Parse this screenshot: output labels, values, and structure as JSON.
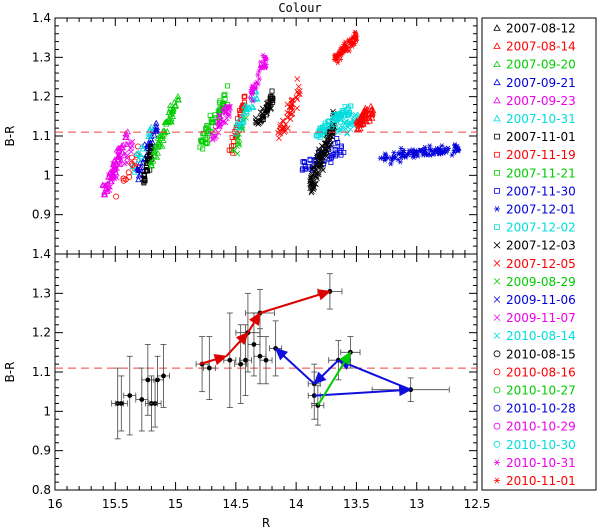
{
  "chart_data": {
    "type": "scatter",
    "title": "Colour",
    "xlabel": "R",
    "ylabel": "B-R",
    "xlim": [
      16,
      12.5
    ],
    "ylim": [
      0.8,
      1.4
    ],
    "x_ticks": [
      "16",
      "15.5",
      "15",
      "14.5",
      "14",
      "13.5",
      "13",
      "12.5"
    ],
    "top_y_ticks": [
      "0.9",
      "1",
      "1.1",
      "1.2",
      "1.3",
      "1.4"
    ],
    "bottom_y_ticks": [
      "0.8",
      "0.9",
      "1",
      "1.1",
      "1.2",
      "1.3",
      "1.4"
    ],
    "reference_line": 1.11,
    "legend": [
      {
        "label": "2007-08-12",
        "color": "#000000",
        "marker": "triangle"
      },
      {
        "label": "2007-08-14",
        "color": "#ff0000",
        "marker": "triangle"
      },
      {
        "label": "2007-09-20",
        "color": "#00cc00",
        "marker": "triangle"
      },
      {
        "label": "2007-09-21",
        "color": "#0000dd",
        "marker": "triangle"
      },
      {
        "label": "2007-09-23",
        "color": "#ee00ee",
        "marker": "triangle"
      },
      {
        "label": "2007-10-31",
        "color": "#00dddd",
        "marker": "triangle"
      },
      {
        "label": "2007-11-01",
        "color": "#000000",
        "marker": "square"
      },
      {
        "label": "2007-11-19",
        "color": "#ff0000",
        "marker": "square"
      },
      {
        "label": "2007-11-21",
        "color": "#00cc00",
        "marker": "square"
      },
      {
        "label": "2007-11-30",
        "color": "#0000dd",
        "marker": "square"
      },
      {
        "label": "2007-12-01",
        "color": "#0000dd",
        "marker": "star"
      },
      {
        "label": "2007-12-02",
        "color": "#00dddd",
        "marker": "square"
      },
      {
        "label": "2007-12-03",
        "color": "#000000",
        "marker": "cross"
      },
      {
        "label": "2007-12-05",
        "color": "#ff0000",
        "marker": "cross"
      },
      {
        "label": "2009-08-29",
        "color": "#00cc00",
        "marker": "cross"
      },
      {
        "label": "2009-11-06",
        "color": "#0000dd",
        "marker": "cross"
      },
      {
        "label": "2009-11-07",
        "color": "#ee00ee",
        "marker": "cross"
      },
      {
        "label": "2010-08-14",
        "color": "#00dddd",
        "marker": "cross"
      },
      {
        "label": "2010-08-15",
        "color": "#000000",
        "marker": "circle"
      },
      {
        "label": "2010-08-16",
        "color": "#ff0000",
        "marker": "circle"
      },
      {
        "label": "2010-10-27",
        "color": "#00cc00",
        "marker": "circle"
      },
      {
        "label": "2010-10-28",
        "color": "#0000dd",
        "marker": "circle"
      },
      {
        "label": "2010-10-29",
        "color": "#ee00ee",
        "marker": "circle"
      },
      {
        "label": "2010-10-30",
        "color": "#00dddd",
        "marker": "circle"
      },
      {
        "label": "2010-10-31",
        "color": "#ee00ee",
        "marker": "star"
      },
      {
        "label": "2010-11-01",
        "color": "#ff0000",
        "marker": "star"
      }
    ],
    "top_clusters": [
      {
        "color": "#ee00ee",
        "marker": "triangle",
        "x": [
          15.6,
          15.4
        ],
        "y": [
          0.95,
          1.1
        ],
        "spread": 0.025,
        "n": 60
      },
      {
        "color": "#ee00ee",
        "marker": "cross",
        "x": [
          15.55,
          15.35
        ],
        "y": [
          0.98,
          1.08
        ],
        "spread": 0.02,
        "n": 30
      },
      {
        "color": "#ff0000",
        "marker": "circle",
        "x": [
          15.5,
          15.3
        ],
        "y": [
          0.96,
          1.05
        ],
        "spread": 0.02,
        "n": 15
      },
      {
        "color": "#0000dd",
        "marker": "triangle",
        "x": [
          15.32,
          15.15
        ],
        "y": [
          1.0,
          1.13
        ],
        "spread": 0.02,
        "n": 40
      },
      {
        "color": "#00dddd",
        "marker": "triangle",
        "x": [
          15.35,
          15.2
        ],
        "y": [
          1.02,
          1.12
        ],
        "spread": 0.015,
        "n": 15
      },
      {
        "color": "#000000",
        "marker": "square",
        "x": [
          15.27,
          15.2
        ],
        "y": [
          0.98,
          1.07
        ],
        "spread": 0.015,
        "n": 35
      },
      {
        "color": "#00cc00",
        "marker": "triangle",
        "x": [
          15.2,
          14.97
        ],
        "y": [
          1.04,
          1.2
        ],
        "spread": 0.02,
        "n": 60
      },
      {
        "color": "#00cc00",
        "marker": "square",
        "x": [
          14.8,
          14.58
        ],
        "y": [
          1.08,
          1.19
        ],
        "spread": 0.025,
        "n": 60
      },
      {
        "color": "#ee00ee",
        "marker": "cross",
        "x": [
          14.7,
          14.55
        ],
        "y": [
          1.1,
          1.17
        ],
        "spread": 0.02,
        "n": 40
      },
      {
        "color": "#ff0000",
        "marker": "square",
        "x": [
          14.55,
          14.42
        ],
        "y": [
          1.05,
          1.2
        ],
        "spread": 0.02,
        "n": 30
      },
      {
        "color": "#00cc00",
        "marker": "cross",
        "x": [
          14.55,
          14.42
        ],
        "y": [
          1.02,
          1.15
        ],
        "spread": 0.02,
        "n": 20
      },
      {
        "color": "#00dddd",
        "marker": "triangle",
        "x": [
          14.5,
          14.32
        ],
        "y": [
          1.12,
          1.21
        ],
        "spread": 0.02,
        "n": 30
      },
      {
        "color": "#ee00ee",
        "marker": "star",
        "x": [
          14.38,
          14.25
        ],
        "y": [
          1.2,
          1.3
        ],
        "spread": 0.02,
        "n": 40
      },
      {
        "color": "#000000",
        "marker": "cross",
        "x": [
          14.35,
          14.2
        ],
        "y": [
          1.13,
          1.18
        ],
        "spread": 0.015,
        "n": 30
      },
      {
        "color": "#000000",
        "marker": "square",
        "x": [
          14.28,
          14.18
        ],
        "y": [
          1.14,
          1.21
        ],
        "spread": 0.015,
        "n": 20
      },
      {
        "color": "#ff0000",
        "marker": "cross",
        "x": [
          14.15,
          13.97
        ],
        "y": [
          1.1,
          1.22
        ],
        "spread": 0.025,
        "n": 45
      },
      {
        "color": "#0000dd",
        "marker": "square",
        "x": [
          13.95,
          13.62
        ],
        "y": [
          1.02,
          1.07
        ],
        "spread": 0.02,
        "n": 50
      },
      {
        "color": "#000000",
        "marker": "cross",
        "x": [
          13.88,
          13.68
        ],
        "y": [
          0.97,
          1.14
        ],
        "spread": 0.03,
        "n": 120
      },
      {
        "color": "#00dddd",
        "marker": "square",
        "x": [
          13.82,
          13.55
        ],
        "y": [
          1.11,
          1.17
        ],
        "spread": 0.015,
        "n": 70
      },
      {
        "color": "#00dddd",
        "marker": "cross",
        "x": [
          13.65,
          13.45
        ],
        "y": [
          1.11,
          1.15
        ],
        "spread": 0.015,
        "n": 40
      },
      {
        "color": "#ff0000",
        "marker": "star",
        "x": [
          13.68,
          13.5
        ],
        "y": [
          1.3,
          1.35
        ],
        "spread": 0.015,
        "n": 60
      },
      {
        "color": "#ff0000",
        "marker": "triangle",
        "x": [
          13.5,
          13.35
        ],
        "y": [
          1.13,
          1.17
        ],
        "spread": 0.015,
        "n": 60
      },
      {
        "color": "#0000dd",
        "marker": "star",
        "x": [
          13.3,
          12.65
        ],
        "y": [
          1.045,
          1.07
        ],
        "spread": 0.012,
        "n": 110
      }
    ],
    "bottom_points": [
      {
        "x": 15.48,
        "y": 1.02,
        "xerr": 0.05,
        "yerr": 0.09
      },
      {
        "x": 15.45,
        "y": 1.02,
        "xerr": 0.05,
        "yerr": 0.07
      },
      {
        "x": 15.38,
        "y": 1.04,
        "xerr": 0.05,
        "yerr": 0.1
      },
      {
        "x": 15.28,
        "y": 1.03,
        "xerr": 0.05,
        "yerr": 0.08
      },
      {
        "x": 15.23,
        "y": 1.08,
        "xerr": 0.05,
        "yerr": 0.09
      },
      {
        "x": 15.2,
        "y": 1.02,
        "xerr": 0.05,
        "yerr": 0.07
      },
      {
        "x": 15.17,
        "y": 1.02,
        "xerr": 0.05,
        "yerr": 0.06
      },
      {
        "x": 15.15,
        "y": 1.08,
        "xerr": 0.05,
        "yerr": 0.06
      },
      {
        "x": 15.1,
        "y": 1.09,
        "xerr": 0.05,
        "yerr": 0.08
      },
      {
        "x": 14.78,
        "y": 1.12,
        "xerr": 0.05,
        "yerr": 0.07
      },
      {
        "x": 14.72,
        "y": 1.11,
        "xerr": 0.05,
        "yerr": 0.08
      },
      {
        "x": 14.55,
        "y": 1.13,
        "xerr": 0.05,
        "yerr": 0.12
      },
      {
        "x": 14.46,
        "y": 1.12,
        "xerr": 0.05,
        "yerr": 0.1
      },
      {
        "x": 14.42,
        "y": 1.13,
        "xerr": 0.05,
        "yerr": 0.09
      },
      {
        "x": 14.3,
        "y": 1.14,
        "xerr": 0.05,
        "yerr": 0.07
      },
      {
        "x": 14.25,
        "y": 1.13,
        "xerr": 0.05,
        "yerr": 0.06
      },
      {
        "x": 14.35,
        "y": 1.17,
        "xerr": 0.05,
        "yerr": 0.08
      },
      {
        "x": 14.4,
        "y": 1.2,
        "xerr": 0.1,
        "yerr": 0.1
      },
      {
        "x": 14.3,
        "y": 1.25,
        "xerr": 0.12,
        "yerr": 0.06
      },
      {
        "x": 13.72,
        "y": 1.305,
        "xerr": 0.1,
        "yerr": 0.045
      },
      {
        "x": 14.17,
        "y": 1.16,
        "xerr": 0.05,
        "yerr": 0.07
      },
      {
        "x": 13.85,
        "y": 1.07,
        "xerr": 0.05,
        "yerr": 0.05
      },
      {
        "x": 13.85,
        "y": 1.04,
        "xerr": 0.05,
        "yerr": 0.06
      },
      {
        "x": 13.82,
        "y": 1.015,
        "xerr": 0.05,
        "yerr": 0.05
      },
      {
        "x": 13.65,
        "y": 1.13,
        "xerr": 0.08,
        "yerr": 0.05
      },
      {
        "x": 13.55,
        "y": 1.15,
        "xerr": 0.08,
        "yerr": 0.04
      },
      {
        "x": 13.05,
        "y": 1.055,
        "xerr": 0.32,
        "yerr": 0.03
      }
    ],
    "arrows": [
      {
        "color": "#dd0000",
        "x1": 14.8,
        "y1": 1.12,
        "x2": 14.58,
        "y2": 1.14
      },
      {
        "color": "#dd0000",
        "x1": 14.58,
        "y1": 1.14,
        "x2": 14.4,
        "y2": 1.2
      },
      {
        "color": "#dd0000",
        "x1": 14.4,
        "y1": 1.2,
        "x2": 14.3,
        "y2": 1.25
      },
      {
        "color": "#dd0000",
        "x1": 14.3,
        "y1": 1.25,
        "x2": 13.72,
        "y2": 1.305
      },
      {
        "color": "#1010dd",
        "x1": 13.85,
        "y1": 1.07,
        "x2": 14.17,
        "y2": 1.16
      },
      {
        "color": "#1010dd",
        "x1": 13.85,
        "y1": 1.04,
        "x2": 13.05,
        "y2": 1.055
      },
      {
        "color": "#1010dd",
        "x1": 13.05,
        "y1": 1.055,
        "x2": 13.65,
        "y2": 1.13
      },
      {
        "color": "#1010dd",
        "x1": 13.65,
        "y1": 1.13,
        "x2": 13.85,
        "y2": 1.07
      },
      {
        "color": "#00cc00",
        "x1": 13.82,
        "y1": 1.015,
        "x2": 13.55,
        "y2": 1.15
      }
    ]
  }
}
